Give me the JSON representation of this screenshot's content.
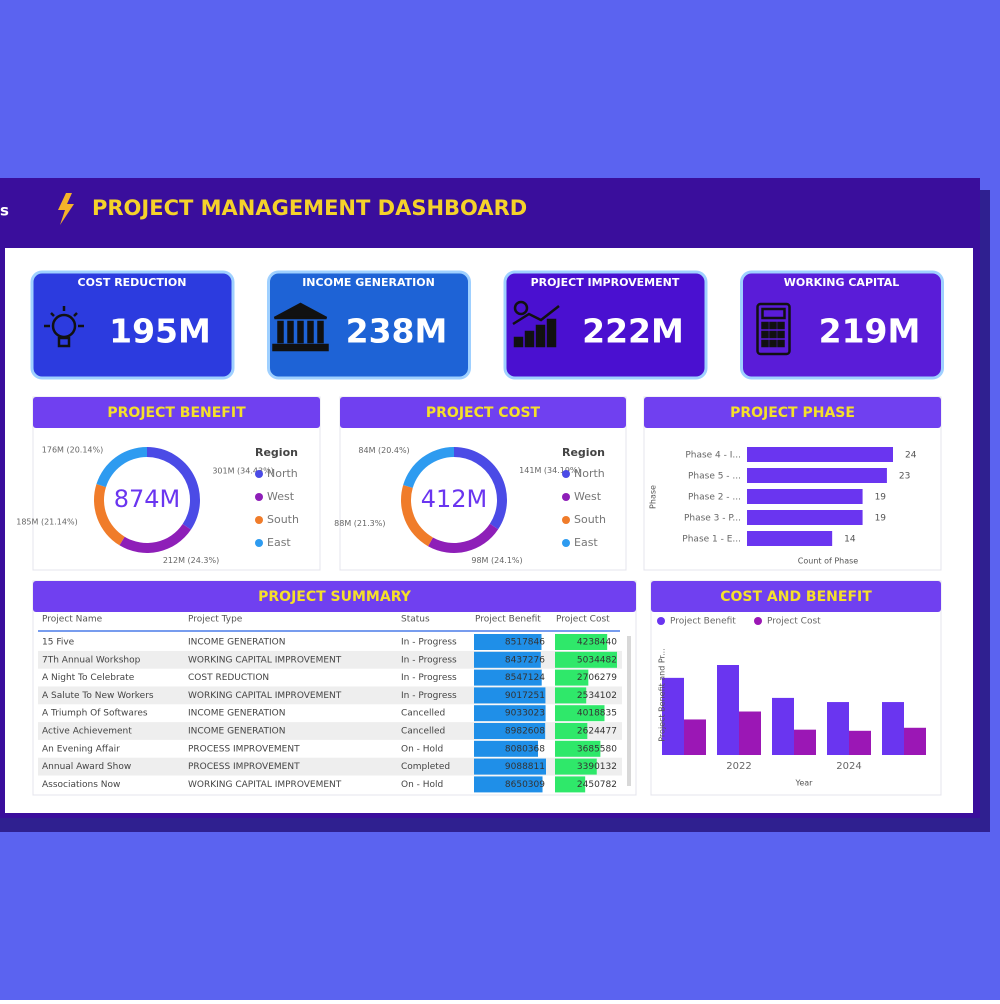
{
  "header": {
    "fragment": "s",
    "title": "PROJECT MANAGEMENT DASHBOARD"
  },
  "kpis": [
    {
      "label": "COST REDUCTION",
      "value": "195M"
    },
    {
      "label": "INCOME GENERATION",
      "value": "238M"
    },
    {
      "label": "PROJECT IMPROVEMENT",
      "value": "222M"
    },
    {
      "label": "WORKING CAPITAL",
      "value": "219M"
    }
  ],
  "table": {
    "title": "PROJECT SUMMARY",
    "columns": [
      "Project Name",
      "Project Type",
      "Status",
      "Project Benefit",
      "Project Cost"
    ],
    "rows": [
      [
        "15 Five",
        "INCOME GENERATION",
        "In - Progress",
        8517846,
        4238440
      ],
      [
        "7Th Annual Workshop",
        "WORKING CAPITAL IMPROVEMENT",
        "In - Progress",
        8437276,
        5034482
      ],
      [
        "A Night To Celebrate",
        "COST REDUCTION",
        "In - Progress",
        8547124,
        2706279
      ],
      [
        "A Salute To New Workers",
        "WORKING CAPITAL IMPROVEMENT",
        "In - Progress",
        9017251,
        2534102
      ],
      [
        "A Triumph Of Softwares",
        "INCOME GENERATION",
        "Cancelled",
        9033023,
        4018835
      ],
      [
        "Active Achievement",
        "INCOME GENERATION",
        "Cancelled",
        8982608,
        2624477
      ],
      [
        "An Evening Affair",
        "PROCESS IMPROVEMENT",
        "On - Hold",
        8080368,
        3685580
      ],
      [
        "Annual Award Show",
        "PROCESS IMPROVEMENT",
        "Completed",
        9088811,
        3390132
      ],
      [
        "Associations Now",
        "WORKING CAPITAL IMPROVEMENT",
        "On - Hold",
        8650309,
        2450782
      ]
    ]
  },
  "chart_data": [
    {
      "type": "pie",
      "title": "PROJECT BENEFIT",
      "center_label": "874M",
      "legend_title": "Region",
      "categories": [
        "North",
        "West",
        "South",
        "East"
      ],
      "values": [
        301,
        212,
        185,
        176
      ],
      "value_labels": [
        "301M (34.43%)",
        "212M (24.3%)",
        "185M (21.14%)",
        "176M (20.14%)"
      ],
      "colors": [
        "#4b4be6",
        "#8e1fb8",
        "#f07c2a",
        "#2e9bf0"
      ]
    },
    {
      "type": "pie",
      "title": "PROJECT COST",
      "center_label": "412M",
      "legend_title": "Region",
      "categories": [
        "North",
        "West",
        "South",
        "East"
      ],
      "values": [
        141,
        98,
        88,
        84
      ],
      "value_labels": [
        "141M (34.19%)",
        "98M (24.1%)",
        "88M (21.3%)",
        "84M (20.4%)"
      ],
      "colors": [
        "#4b4be6",
        "#8e1fb8",
        "#f07c2a",
        "#2e9bf0"
      ]
    },
    {
      "type": "hbar",
      "title": "PROJECT PHASE",
      "ylabel": "Phase",
      "xlabel": "Count of Phase",
      "categories": [
        "Phase 4 - I...",
        "Phase 5 - ...",
        "Phase 2 - ...",
        "Phase 3 - P...",
        "Phase 1 - E..."
      ],
      "values": [
        24,
        23,
        19,
        19,
        14
      ],
      "color": "#6a35f0"
    },
    {
      "type": "groupbar",
      "title": "COST AND BENEFIT",
      "xlabel": "Year",
      "ylabel": "Project Benefit and Pr...",
      "categories": [
        null,
        "2022",
        null,
        "2024",
        null
      ],
      "series": [
        {
          "name": "Project Benefit",
          "color": "#6a35f0",
          "values": [
            204,
            238,
            151,
            140,
            140
          ]
        },
        {
          "name": "Project Cost",
          "color": "#9b17b5",
          "values": [
            94,
            115,
            67,
            64,
            72
          ]
        }
      ]
    }
  ]
}
